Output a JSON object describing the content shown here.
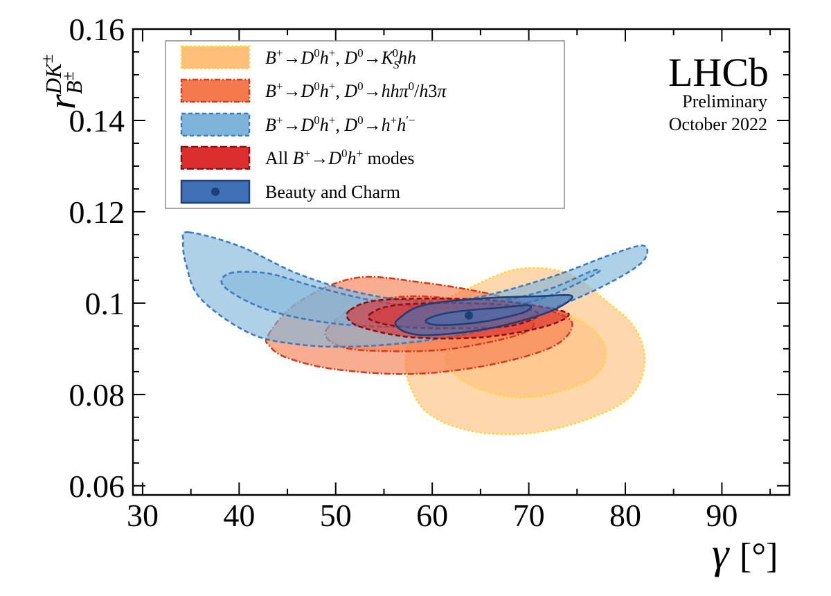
{
  "chart_data": {
    "type": "contour",
    "title": "",
    "xlabel_symbol": "γ",
    "xlabel_unit": "[°]",
    "ylabel_main": "r",
    "ylabel_sup": "DK",
    "ylabel_sup_pm": "±",
    "ylabel_sub": "B",
    "ylabel_sub_pm": "±",
    "xlim": [
      29,
      97
    ],
    "ylim": [
      0.058,
      0.16
    ],
    "xticks": [
      30,
      40,
      50,
      60,
      70,
      80,
      90
    ],
    "xtick_labels": [
      "30",
      "40",
      "50",
      "60",
      "70",
      "80",
      "90"
    ],
    "yticks": [
      0.06,
      0.08,
      0.1,
      0.12,
      0.14,
      0.16
    ],
    "ytick_labels": [
      "0.06",
      "0.08",
      "0.1",
      "0.12",
      "0.14",
      "0.16"
    ],
    "series": [
      {
        "name": "B+→D0h+, D0→KS0hh",
        "fill_color": "#fdbf7a",
        "line_color": "#fdd835",
        "line_style": "dotted",
        "contours": [
          {
            "level": "outer",
            "points": [
              [
                58,
                0.0935
              ],
              [
                60,
                0.099
              ],
              [
                64,
                0.1035
              ],
              [
                69,
                0.1075
              ],
              [
                74,
                0.1065
              ],
              [
                78,
                0.1005
              ],
              [
                81,
                0.0945
              ],
              [
                82,
                0.087
              ],
              [
                80.5,
                0.0795
              ],
              [
                76,
                0.0745
              ],
              [
                70,
                0.0715
              ],
              [
                64,
                0.072
              ],
              [
                59.5,
                0.076
              ],
              [
                57.5,
                0.083
              ],
              [
                57.3,
                0.089
              ]
            ]
          },
          {
            "level": "inner",
            "points": [
              [
                62,
                0.091
              ],
              [
                65,
                0.0955
              ],
              [
                70,
                0.0985
              ],
              [
                74,
                0.0975
              ],
              [
                77,
                0.0935
              ],
              [
                78,
                0.0885
              ],
              [
                76.5,
                0.0835
              ],
              [
                72,
                0.08
              ],
              [
                68,
                0.0795
              ],
              [
                64,
                0.082
              ],
              [
                61.5,
                0.0865
              ]
            ]
          }
        ]
      },
      {
        "name": "B+→D0h+, D0→hhπ0/h3π",
        "fill_color": "#f47a4e",
        "line_color": "#d23c1a",
        "line_style": "dash-dot",
        "contours": [
          {
            "level": "outer",
            "points": [
              [
                43,
                0.093
              ],
              [
                46,
                0.1
              ],
              [
                52,
                0.1055
              ],
              [
                59,
                0.1045
              ],
              [
                66,
                0.102
              ],
              [
                72,
                0.0985
              ],
              [
                74.5,
                0.0955
              ],
              [
                72.5,
                0.0905
              ],
              [
                66,
                0.0865
              ],
              [
                58,
                0.0845
              ],
              [
                50,
                0.0855
              ],
              [
                45,
                0.088
              ],
              [
                43.2,
                0.0905
              ]
            ]
          },
          {
            "level": "inner",
            "points": [
              [
                49,
                0.094
              ],
              [
                52.5,
                0.0995
              ],
              [
                58,
                0.1015
              ],
              [
                65,
                0.1
              ],
              [
                70,
                0.097
              ],
              [
                69.5,
                0.0935
              ],
              [
                62,
                0.09
              ],
              [
                55,
                0.0895
              ],
              [
                50.5,
                0.0905
              ]
            ]
          }
        ]
      },
      {
        "name": "B+→D0h+, D0→h+h′−",
        "fill_color": "#7eb4da",
        "line_color": "#3b7bbf",
        "line_style": "dashed",
        "contours": [
          {
            "level": "outer",
            "points": [
              [
                34.8,
                0.1155
              ],
              [
                40,
                0.1125
              ],
              [
                46,
                0.1065
              ],
              [
                52,
                0.1025
              ],
              [
                58,
                0.1005
              ],
              [
                64,
                0.101
              ],
              [
                72,
                0.1055
              ],
              [
                79,
                0.111
              ],
              [
                82,
                0.1125
              ],
              [
                81.5,
                0.1085
              ],
              [
                76,
                0.102
              ],
              [
                68,
                0.0955
              ],
              [
                60,
                0.092
              ],
              [
                52,
                0.0905
              ],
              [
                46,
                0.091
              ],
              [
                41,
                0.0935
              ],
              [
                36,
                0.101
              ],
              [
                34.5,
                0.1085
              ],
              [
                34.2,
                0.1135
              ]
            ]
          },
          {
            "level": "inner",
            "points": [
              [
                39,
                0.1065
              ],
              [
                43,
                0.1065
              ],
              [
                48,
                0.1035
              ],
              [
                54,
                0.1005
              ],
              [
                60,
                0.099
              ],
              [
                66,
                0.1
              ],
              [
                72,
                0.103
              ],
              [
                76.5,
                0.107
              ],
              [
                77,
                0.1065
              ],
              [
                72,
                0.1015
              ],
              [
                65,
                0.0975
              ],
              [
                58,
                0.095
              ],
              [
                50,
                0.0955
              ],
              [
                43,
                0.0985
              ],
              [
                38.5,
                0.1035
              ]
            ]
          }
        ]
      },
      {
        "name": "All B+→D0h+ modes",
        "fill_color": "#dc2e2e",
        "line_color": "#8a1010",
        "line_style": "dashed",
        "contours": [
          {
            "level": "outer",
            "points": [
              [
                51.5,
                0.0985
              ],
              [
                54,
                0.1005
              ],
              [
                60,
                0.101
              ],
              [
                67,
                0.1005
              ],
              [
                73,
                0.0985
              ],
              [
                74,
                0.097
              ],
              [
                71,
                0.0945
              ],
              [
                65,
                0.0925
              ],
              [
                58,
                0.0925
              ],
              [
                53,
                0.0945
              ],
              [
                51.3,
                0.0965
              ]
            ]
          },
          {
            "level": "inner",
            "points": [
              [
                53.5,
                0.0975
              ],
              [
                56,
                0.0995
              ],
              [
                62,
                0.1
              ],
              [
                68,
                0.0995
              ],
              [
                71,
                0.0975
              ],
              [
                68,
                0.095
              ],
              [
                62,
                0.0945
              ],
              [
                57,
                0.0948
              ],
              [
                54,
                0.096
              ]
            ]
          }
        ]
      },
      {
        "name": "Beauty and Charm",
        "fill_color": "#3f6fb4",
        "line_color": "#1e3f77",
        "line_style": "solid",
        "best_fit": {
          "x": 63.8,
          "y": 0.0973
        },
        "contours": [
          {
            "level": "outer",
            "points": [
              [
                56.5,
                0.0965
              ],
              [
                59,
                0.0995
              ],
              [
                65,
                0.101
              ],
              [
                71,
                0.1015
              ],
              [
                74.5,
                0.1015
              ],
              [
                72,
                0.098
              ],
              [
                66,
                0.0945
              ],
              [
                60,
                0.093
              ],
              [
                57.5,
                0.0935
              ],
              [
                56.3,
                0.095
              ]
            ]
          },
          {
            "level": "inner",
            "points": [
              [
                59.5,
                0.0965
              ],
              [
                62,
                0.098
              ],
              [
                67,
                0.099
              ],
              [
                70,
                0.0995
              ],
              [
                69.5,
                0.098
              ],
              [
                65.5,
                0.096
              ],
              [
                61.5,
                0.0952
              ],
              [
                59.7,
                0.0955
              ]
            ]
          }
        ]
      }
    ],
    "legend": {
      "position": "top-left",
      "entries": [
        {
          "label": "B+→D0h+, D0→KS0hh"
        },
        {
          "label": "B+→D0h+, D0→hhπ0/h3π"
        },
        {
          "label": "B+→D0h+, D0→h+h′−"
        },
        {
          "label": "All B+→D0h+ modes"
        },
        {
          "label": "Beauty and Charm"
        }
      ]
    },
    "annotations": {
      "experiment": "LHCb",
      "status": "Preliminary",
      "date": "October 2022"
    }
  }
}
